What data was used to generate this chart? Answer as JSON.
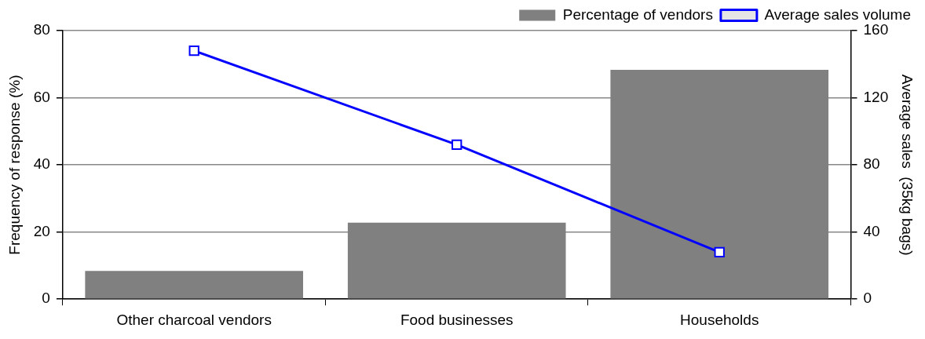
{
  "chart_data": {
    "type": "bar",
    "categories": [
      "Other charcoal vendors",
      "Food businesses",
      "Households"
    ],
    "ylabel": "Frequency of response (%)",
    "y2label": "Average sales  (35kg bags)",
    "series": [
      {
        "name": "Percentage of vendors",
        "color": "#808080",
        "values": [
          8.4,
          22.8,
          68.3
        ]
      },
      {
        "name": "Average sales volume",
        "type": "line",
        "axis": "y2",
        "color": "#0000ff",
        "values": [
          148,
          92,
          28
        ]
      }
    ],
    "ylim": [
      0,
      80
    ],
    "yticks": [
      0,
      20,
      40,
      60,
      80
    ],
    "y2lim": [
      0,
      160
    ],
    "y2ticks": [
      0,
      40,
      80,
      120,
      160
    ],
    "grid": "y",
    "legend": "top right",
    "marker": "square",
    "line_style": "solid"
  }
}
